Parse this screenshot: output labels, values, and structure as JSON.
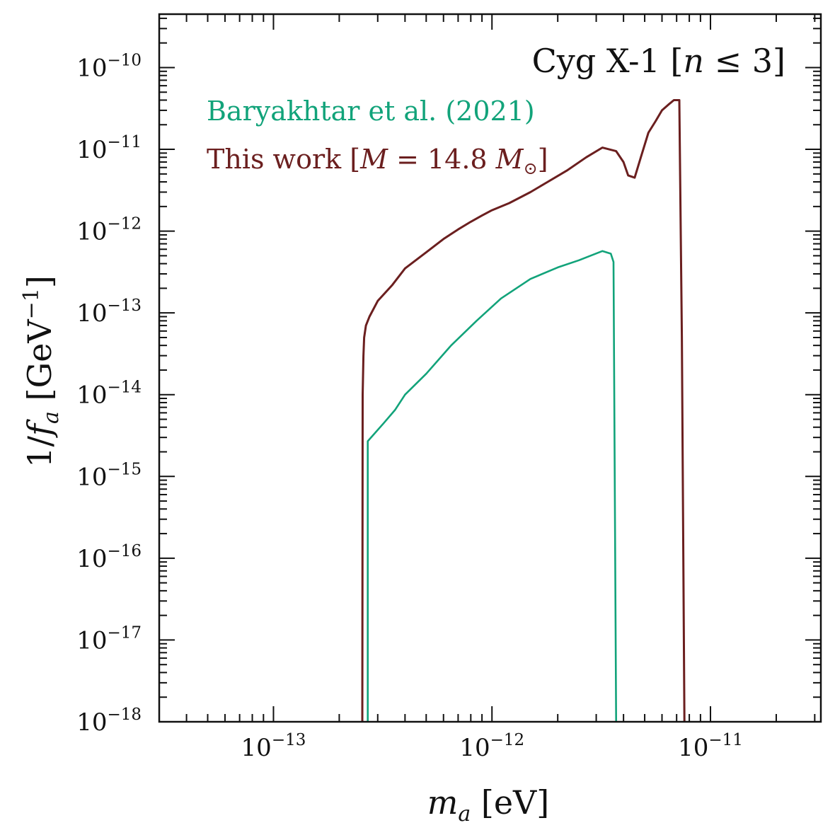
{
  "chart_data": {
    "type": "line",
    "title": "Cyg X-1 [n ≤ 3]",
    "xlabel": "m_a [eV]",
    "ylabel": "1/f_a  [GeV⁻¹]",
    "xscale": "log",
    "yscale": "log",
    "xlim": [
      3e-14,
      3.2e-11
    ],
    "ylim": [
      1e-18,
      4.5e-10
    ],
    "grid": false,
    "legend_position": "top-left",
    "x_ticks": [
      {
        "base": "10",
        "exp": "−13",
        "value": 1e-13
      },
      {
        "base": "10",
        "exp": "−12",
        "value": 1e-12
      },
      {
        "base": "10",
        "exp": "−11",
        "value": 1e-11
      }
    ],
    "y_ticks": [
      {
        "base": "10",
        "exp": "−18",
        "value": 1e-18
      },
      {
        "base": "10",
        "exp": "−17",
        "value": 1e-17
      },
      {
        "base": "10",
        "exp": "−16",
        "value": 1e-16
      },
      {
        "base": "10",
        "exp": "−15",
        "value": 1e-15
      },
      {
        "base": "10",
        "exp": "−14",
        "value": 1e-14
      },
      {
        "base": "10",
        "exp": "−13",
        "value": 1e-13
      },
      {
        "base": "10",
        "exp": "−12",
        "value": 1e-12
      },
      {
        "base": "10",
        "exp": "−11",
        "value": 1e-11
      },
      {
        "base": "10",
        "exp": "−10",
        "value": 1e-10
      }
    ],
    "series": [
      {
        "name": "Baryakhtar et al. (2021)",
        "color": "#12a37a",
        "x": [
          2.7e-13,
          2.7e-13,
          3.2e-13,
          3.6e-13,
          4e-13,
          5e-13,
          6.5e-13,
          8.5e-13,
          1.1e-12,
          1.5e-12,
          2e-12,
          2.5e-12,
          3.2e-12,
          3.5e-12,
          3.6e-12,
          3.7e-12
        ],
        "y": [
          1e-18,
          2.7e-15,
          4.5e-15,
          6.5e-15,
          1e-14,
          1.8e-14,
          4e-14,
          8e-14,
          1.5e-13,
          2.6e-13,
          3.6e-13,
          4.4e-13,
          5.7e-13,
          5.3e-13,
          4.2e-13,
          1e-18
        ]
      },
      {
        "name": "This work [M = 14.8 M⊙]",
        "color": "#6b1f1f",
        "x": [
          2.55e-13,
          2.56e-13,
          2.58e-13,
          2.6e-13,
          2.65e-13,
          2.75e-13,
          3e-13,
          3.5e-13,
          4e-13,
          5e-13,
          6e-13,
          7e-13,
          8e-13,
          9e-13,
          1e-12,
          1.2e-12,
          1.5e-12,
          1.8e-12,
          2.2e-12,
          2.7e-12,
          3.2e-12,
          3.7e-12,
          4e-12,
          4.2e-12,
          4.5e-12,
          4.8e-12,
          5.2e-12,
          5.6e-12,
          6e-12,
          6.4e-12,
          6.8e-12,
          7.2e-12,
          7.4e-12,
          7.6e-12
        ],
        "y": [
          1e-18,
          1e-14,
          3e-14,
          5e-14,
          7e-14,
          9e-14,
          1.4e-13,
          2.2e-13,
          3.5e-13,
          5.5e-13,
          8e-13,
          1.05e-12,
          1.3e-12,
          1.55e-12,
          1.8e-12,
          2.2e-12,
          3e-12,
          4e-12,
          5.5e-12,
          8e-12,
          1.05e-11,
          9.5e-12,
          7e-12,
          4.8e-12,
          4.5e-12,
          8e-12,
          1.6e-11,
          2.2e-11,
          3e-11,
          3.5e-11,
          4e-11,
          4e-11,
          5e-14,
          1e-18
        ]
      }
    ],
    "annotations": [
      "Cyg X-1 [n ≤ 3]"
    ]
  },
  "labels": {
    "title_main": "Cyg X-1 [",
    "title_n": "n",
    "title_rest": " ≤ 3]",
    "xlabel_m": "m",
    "xlabel_sub": "a",
    "xlabel_unit": " [eV]",
    "ylabel_frac": "1/",
    "ylabel_f": "f",
    "ylabel_sub": "a",
    "ylabel_unit": "  [GeV",
    "ylabel_exp": "−1",
    "ylabel_close": "]",
    "legend_1": "Baryakhtar et al. (2021)",
    "legend_2_pre": "This work [",
    "legend_2_M": "M",
    "legend_2_mid": " = 14.8 ",
    "legend_2_M2": "M",
    "legend_2_sun": "⊙",
    "legend_2_close": "]"
  }
}
